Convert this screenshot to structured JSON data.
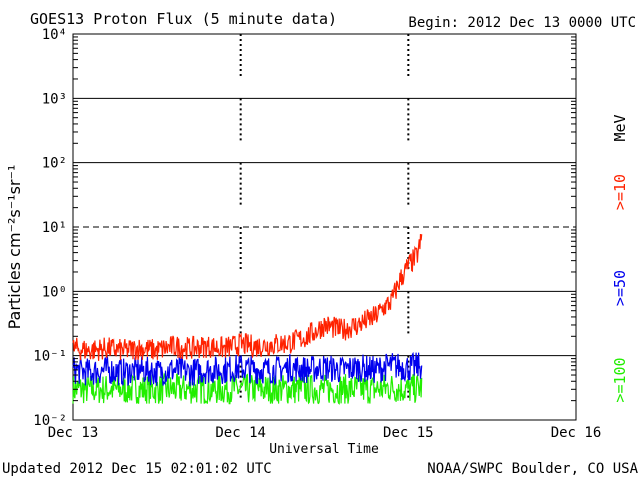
{
  "chart_data": {
    "type": "line",
    "title": "GOES13 Proton Flux (5 minute data)",
    "begin_label": "Begin: 2012 Dec 13 0000 UTC",
    "xlabel": "Universal Time",
    "ylabel": "Particles cm⁻²s⁻¹sr⁻¹",
    "unit_label": "MeV",
    "footer_left": "Updated 2012 Dec 15 02:01:02 UTC",
    "footer_right": "NOAA/SWPC Boulder, CO USA",
    "yscale": "log",
    "ylim": [
      0.01,
      10000
    ],
    "y_tick_labels": [
      {
        "value": 0.01,
        "label": "10⁻²"
      },
      {
        "value": 0.1,
        "label": "10⁻¹"
      },
      {
        "value": 1,
        "label": "10⁰"
      },
      {
        "value": 10,
        "label": "10¹"
      },
      {
        "value": 100,
        "label": "10²"
      },
      {
        "value": 1000,
        "label": "10³"
      },
      {
        "value": 10000,
        "label": "10⁴"
      }
    ],
    "xlim": [
      0,
      3
    ],
    "x_tick_labels": [
      {
        "value": 0,
        "label": "Dec 13"
      },
      {
        "value": 1,
        "label": "Dec 14"
      },
      {
        "value": 2,
        "label": "Dec 15"
      },
      {
        "value": 3,
        "label": "Dec 16"
      }
    ],
    "thresholds": [
      {
        "value": 10,
        "style": "dashed"
      }
    ],
    "series": [
      {
        "name": ">=10",
        "color": "#ff2200",
        "x": [
          0,
          0.1,
          0.2,
          0.3,
          0.4,
          0.5,
          0.6,
          0.7,
          0.8,
          0.9,
          1.0,
          1.1,
          1.2,
          1.3,
          1.4,
          1.5,
          1.6,
          1.7,
          1.75,
          1.8,
          1.85,
          1.9,
          1.95,
          2.0,
          2.05,
          2.08
        ],
        "y": [
          0.13,
          0.12,
          0.13,
          0.12,
          0.13,
          0.12,
          0.14,
          0.13,
          0.14,
          0.13,
          0.15,
          0.14,
          0.15,
          0.16,
          0.2,
          0.3,
          0.25,
          0.3,
          0.35,
          0.4,
          0.55,
          0.7,
          1.5,
          2.5,
          3.5,
          6.5
        ]
      },
      {
        "name": ">=50",
        "color": "#0000ee",
        "x": [
          0,
          0.1,
          0.2,
          0.3,
          0.4,
          0.5,
          0.6,
          0.7,
          0.8,
          0.9,
          1.0,
          1.1,
          1.2,
          1.3,
          1.4,
          1.5,
          1.6,
          1.7,
          1.8,
          1.9,
          2.0,
          2.08
        ],
        "y": [
          0.06,
          0.055,
          0.06,
          0.055,
          0.06,
          0.055,
          0.06,
          0.055,
          0.06,
          0.06,
          0.065,
          0.06,
          0.06,
          0.065,
          0.06,
          0.065,
          0.06,
          0.065,
          0.06,
          0.07,
          0.065,
          0.07
        ]
      },
      {
        "name": ">=100",
        "color": "#22ee00",
        "x": [
          0,
          0.1,
          0.2,
          0.3,
          0.4,
          0.5,
          0.6,
          0.7,
          0.8,
          0.9,
          1.0,
          1.1,
          1.2,
          1.3,
          1.4,
          1.5,
          1.6,
          1.7,
          1.8,
          1.9,
          2.0,
          2.08
        ],
        "y": [
          0.03,
          0.03,
          0.03,
          0.03,
          0.03,
          0.03,
          0.03,
          0.03,
          0.03,
          0.03,
          0.03,
          0.03,
          0.03,
          0.03,
          0.03,
          0.03,
          0.03,
          0.03,
          0.03,
          0.032,
          0.03,
          0.032
        ]
      }
    ]
  }
}
